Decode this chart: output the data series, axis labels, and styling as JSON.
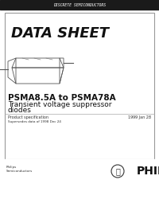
{
  "bg_color": "#ffffff",
  "top_bar_color": "#1a1a1a",
  "top_bar_text": "DISCRETE SEMICONDUCTORS",
  "top_bar_text_color": "#ffffff",
  "card_bg": "#ffffff",
  "card_border": "#999999",
  "data_sheet_title": "DATA SHEET",
  "product_title": "PSMA8.5A to PSMA78A",
  "product_subtitle1": "Transient voltage suppressor",
  "product_subtitle2": "diodes",
  "spec_label": "Product specification",
  "date_text": "1999 Jan 28",
  "supersedes_text": "Supersedes data of 1998 Dec 24",
  "philips_label": "Philips\nSemiconductors",
  "philips_brand": "PHILIPS",
  "title_fontsize": 13,
  "product_title_fontsize": 7.5,
  "subtitle_fontsize": 6.5
}
